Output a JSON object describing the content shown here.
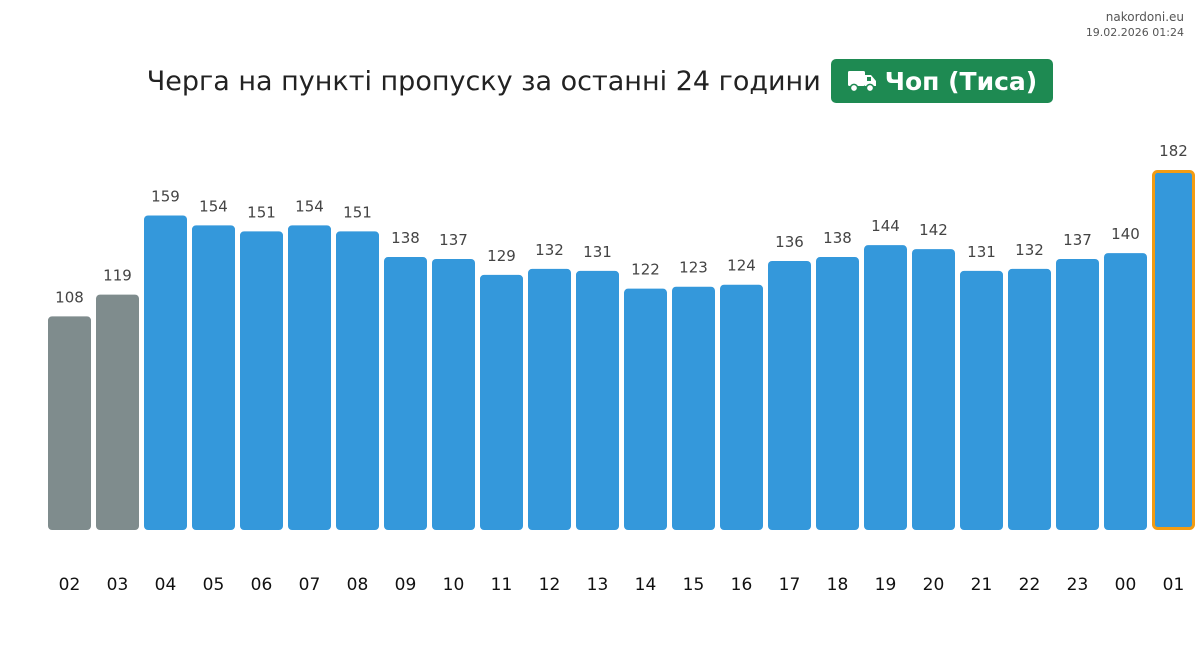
{
  "source": {
    "site": "nakordoni.eu",
    "timestamp": "19.02.2026 01:24"
  },
  "header": {
    "title": "Черга на пункті пропуску за останні 24 години",
    "badge_label": "Чоп (Тиса)",
    "badge_icon": "truck-icon"
  },
  "colors": {
    "past": "#7f8c8d",
    "normal": "#3498db",
    "current_border": "#f39c12",
    "badge": "#1e8a52"
  },
  "chart_data": {
    "type": "bar",
    "title": "Черга на пункті пропуску за останні 24 години",
    "xlabel": "",
    "ylabel": "",
    "categories": [
      "02",
      "03",
      "04",
      "05",
      "06",
      "07",
      "08",
      "09",
      "10",
      "11",
      "12",
      "13",
      "14",
      "15",
      "16",
      "17",
      "18",
      "19",
      "20",
      "21",
      "22",
      "23",
      "00",
      "01"
    ],
    "values": [
      108,
      119,
      159,
      154,
      151,
      154,
      151,
      138,
      137,
      129,
      132,
      131,
      122,
      123,
      124,
      136,
      138,
      144,
      142,
      131,
      132,
      137,
      140,
      182
    ],
    "highlighted_grey": [
      "02",
      "03"
    ],
    "highlighted_current": "01",
    "ylim": [
      0,
      182
    ],
    "grid": false,
    "legend": "none"
  }
}
